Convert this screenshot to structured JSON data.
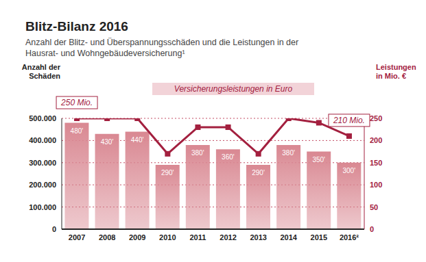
{
  "chart_data": {
    "type": "bar",
    "title": "Blitz-Bilanz 2016",
    "subtitle": "Anzahl der Blitz- und Überspannungsschäden und die Leistungen in der Hausrat- und Wohngebäudeversicherung¹",
    "categories": [
      "2007",
      "2008",
      "2009",
      "2010",
      "2011",
      "2012",
      "2013",
      "2014",
      "2015",
      "2016²"
    ],
    "series": [
      {
        "name": "Anzahl der Schäden",
        "type": "bar",
        "color": "#d98892",
        "values": [
          480000,
          430000,
          440000,
          290000,
          380000,
          360000,
          290000,
          380000,
          350000,
          300000
        ],
        "value_labels": [
          "480'",
          "430'",
          "440'",
          "290'",
          "380'",
          "360'",
          "290'",
          "380'",
          "350'",
          "300'"
        ],
        "data_labels": true
      },
      {
        "name": "Versicherungsleistungen in Euro",
        "type": "line",
        "axis": "y2",
        "color": "#a3203f",
        "marker": "square",
        "values": [
          250,
          250,
          250,
          170,
          230,
          230,
          170,
          250,
          240,
          210
        ]
      }
    ],
    "y2label": "Leistungen in Mio. €",
    "ylim": [
      0,
      500000
    ],
    "yticks": [
      0,
      {
        "value": 100000,
        "label": "100.000"
      },
      {
        "value": 200000,
        "label": "200.000"
      },
      {
        "value": 300000,
        "label": "300.000"
      },
      {
        "value": 400000,
        "label": "400.000"
      },
      {
        "value": 500000,
        "label": "500.000"
      }
    ],
    "y2lim": [
      0,
      250
    ],
    "y2ticks": [
      0,
      50,
      100,
      150,
      200,
      250
    ],
    "grid": true,
    "legend": "top",
    "annotations": [
      {
        "x": "2007",
        "y": 250,
        "text": "250 Mio."
      },
      {
        "x": "2016²",
        "y": 210,
        "text": "210 Mio."
      }
    ]
  }
}
